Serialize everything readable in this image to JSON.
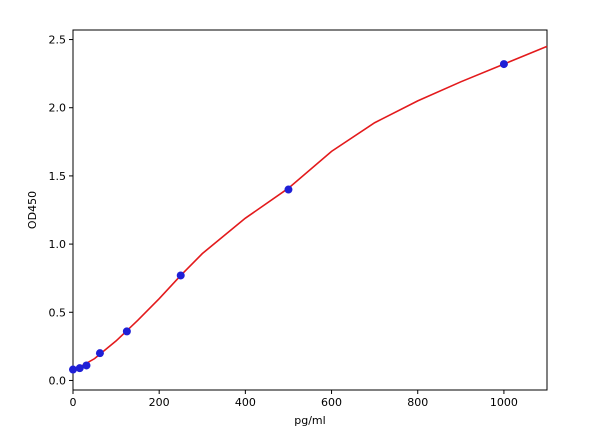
{
  "chart_data": {
    "type": "scatter",
    "x_label": "pg/ml",
    "y_label": "OD450",
    "xlim": [
      0,
      1100
    ],
    "ylim": [
      -0.07,
      2.57
    ],
    "xticks": [
      0,
      200,
      400,
      600,
      800,
      1000
    ],
    "yticks": [
      {
        "value": 0,
        "label": "0.0"
      },
      0.5,
      {
        "value": 1,
        "label": "1.0"
      },
      1.5,
      {
        "value": 2,
        "label": "2.0"
      },
      2.5
    ],
    "series": [
      {
        "type": "line",
        "color": "#e31a1c",
        "x": [
          0,
          50,
          100,
          150,
          200,
          250,
          300,
          400,
          500,
          600,
          700,
          800,
          900,
          1000,
          1100
        ],
        "values": [
          0.07,
          0.16,
          0.29,
          0.44,
          0.6,
          0.77,
          0.93,
          1.19,
          1.41,
          1.68,
          1.89,
          2.05,
          2.19,
          2.32,
          2.45
        ]
      },
      {
        "type": "scatter",
        "color": "#1f1fd6",
        "x": [
          0,
          15.6,
          31.25,
          62.5,
          125,
          250,
          500,
          1000
        ],
        "values": [
          0.08,
          0.09,
          0.11,
          0.2,
          0.36,
          0.77,
          1.4,
          2.32
        ]
      }
    ]
  }
}
